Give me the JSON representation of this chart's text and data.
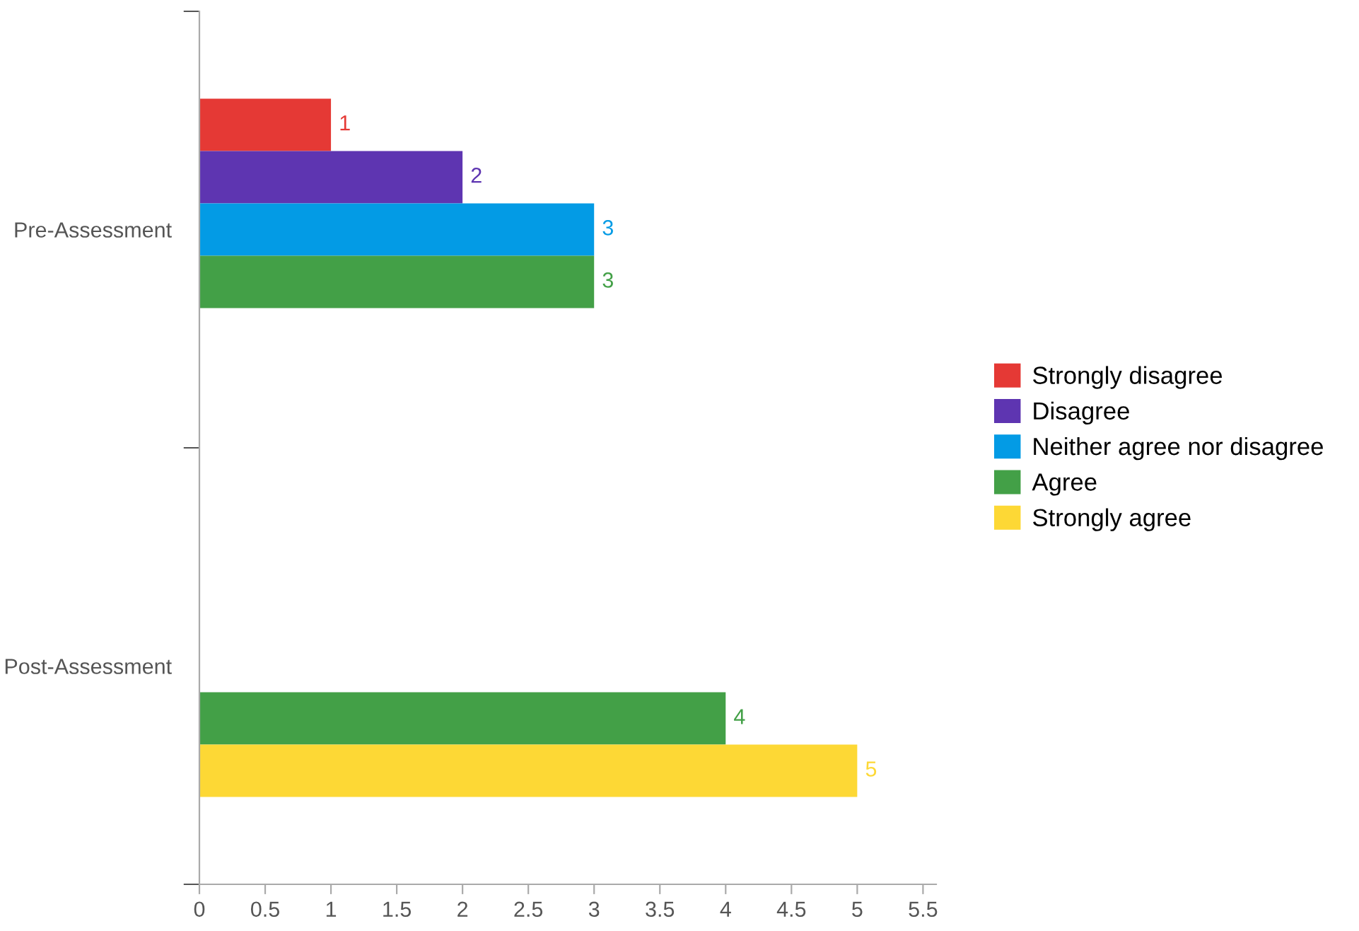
{
  "chart_data": {
    "type": "bar",
    "orientation": "horizontal",
    "categories": [
      "Pre-Assessment",
      "Post-Assessment"
    ],
    "series": [
      {
        "name": "Strongly disagree",
        "color": "#e53935",
        "values": [
          1,
          null
        ]
      },
      {
        "name": "Disagree",
        "color": "#5e35b1",
        "values": [
          2,
          null
        ]
      },
      {
        "name": "Neither agree nor disagree",
        "color": "#039be5",
        "values": [
          3,
          null
        ]
      },
      {
        "name": "Agree",
        "color": "#43a047",
        "values": [
          3,
          4
        ]
      },
      {
        "name": "Strongly agree",
        "color": "#fdd835",
        "values": [
          null,
          5
        ]
      }
    ],
    "xlim": [
      0,
      5.6
    ],
    "xticks": [
      0,
      0.5,
      1,
      1.5,
      2,
      2.5,
      3,
      3.5,
      4,
      4.5,
      5,
      5.5
    ],
    "data_labels": true,
    "legend": "right",
    "grid": false
  }
}
